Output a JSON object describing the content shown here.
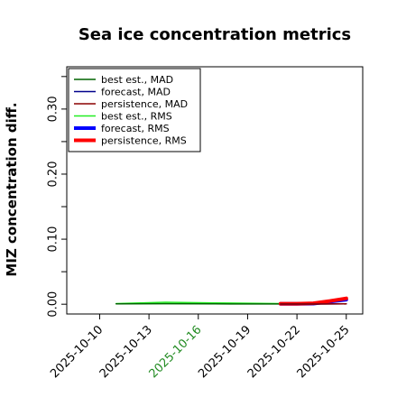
{
  "chart_data": {
    "type": "line",
    "title": "Sea ice concentration metrics",
    "ylabel": "MIZ concentration diff.",
    "xlabel": "",
    "xlim": [
      "2025-10-08",
      "2025-10-26"
    ],
    "ylim": [
      -0.015,
      0.365
    ],
    "yticks": [
      {
        "value": 0.0,
        "label": "0.00"
      },
      {
        "value": 0.05,
        "label": ""
      },
      {
        "value": 0.1,
        "label": "0.10"
      },
      {
        "value": 0.15,
        "label": ""
      },
      {
        "value": 0.2,
        "label": "0.20"
      },
      {
        "value": 0.25,
        "label": ""
      },
      {
        "value": 0.3,
        "label": "0.30"
      },
      {
        "value": 0.35,
        "label": ""
      }
    ],
    "xticks": [
      {
        "value": "2025-10-10",
        "label": "2025-10-10",
        "color": "#000000"
      },
      {
        "value": "2025-10-13",
        "label": "2025-10-13",
        "color": "#000000"
      },
      {
        "value": "2025-10-16",
        "label": "2025-10-16",
        "color": "#228B22"
      },
      {
        "value": "2025-10-19",
        "label": "2025-10-19",
        "color": "#000000"
      },
      {
        "value": "2025-10-22",
        "label": "2025-10-22",
        "color": "#000000"
      },
      {
        "value": "2025-10-25",
        "label": "2025-10-25",
        "color": "#000000"
      }
    ],
    "grid": false,
    "legend_position": "top-left",
    "series": [
      {
        "name": "best est., MAD",
        "color": "#006400",
        "width": 1.5,
        "x": [
          "2025-10-11",
          "2025-10-14",
          "2025-10-17",
          "2025-10-21"
        ],
        "y": [
          0.0005,
          0.0008,
          0.0006,
          0.0004
        ]
      },
      {
        "name": "forecast,  MAD",
        "color": "#00008B",
        "width": 1.5,
        "x": [
          "2025-10-21",
          "2025-10-22",
          "2025-10-23",
          "2025-10-24",
          "2025-10-25"
        ],
        "y": [
          0.0002,
          0.0002,
          0.0003,
          0.0004,
          0.0005
        ]
      },
      {
        "name": "persistence, MAD",
        "color": "#8B0000",
        "width": 1.5,
        "x": [
          "2025-10-21",
          "2025-10-22",
          "2025-10-23",
          "2025-10-24",
          "2025-10-25"
        ],
        "y": [
          0.0002,
          0.0002,
          0.0003,
          0.0004,
          0.0005
        ]
      },
      {
        "name": "best est., RMS",
        "color": "#22EE22",
        "width": 1.5,
        "x": [
          "2025-10-11",
          "2025-10-14",
          "2025-10-17",
          "2025-10-21"
        ],
        "y": [
          0.001,
          0.003,
          0.002,
          0.001
        ]
      },
      {
        "name": "forecast,  RMS",
        "color": "#0000FF",
        "width": 4,
        "x": [
          "2025-10-21",
          "2025-10-22",
          "2025-10-23",
          "2025-10-24",
          "2025-10-25"
        ],
        "y": [
          0.0005,
          0.0005,
          0.001,
          0.004,
          0.007
        ]
      },
      {
        "name": "persistence, RMS",
        "color": "#FF0000",
        "width": 4,
        "x": [
          "2025-10-21",
          "2025-10-22",
          "2025-10-23",
          "2025-10-24",
          "2025-10-25"
        ],
        "y": [
          0.0008,
          0.0008,
          0.0015,
          0.005,
          0.009
        ]
      }
    ]
  }
}
